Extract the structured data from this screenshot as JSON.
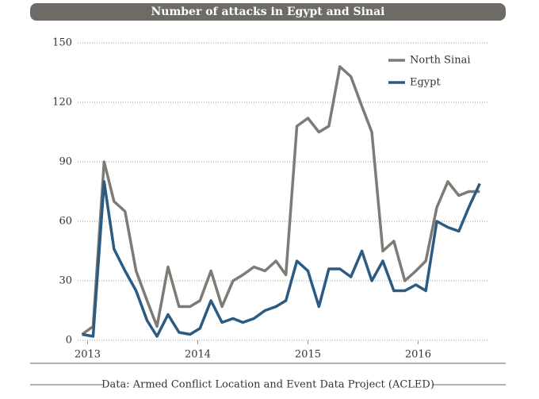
{
  "chart_data": {
    "type": "line",
    "title": "Number of attacks in Egypt and Sinai",
    "source": "Data: Armed Conflict Location and Event Data Project (ACLED)",
    "x": [
      2012.95,
      2013.05,
      2013.15,
      2013.24,
      2013.34,
      2013.44,
      2013.54,
      2013.63,
      2013.73,
      2013.83,
      2013.93,
      2014.02,
      2014.12,
      2014.22,
      2014.32,
      2014.41,
      2014.51,
      2014.61,
      2014.71,
      2014.8,
      2014.9,
      2015.0,
      2015.1,
      2015.19,
      2015.29,
      2015.39,
      2015.49,
      2015.58,
      2015.68,
      2015.78,
      2015.88,
      2015.98,
      2016.07,
      2016.17,
      2016.27,
      2016.37,
      2016.46,
      2016.56
    ],
    "series": [
      {
        "name": "North Sinai",
        "color": "#7d7b74",
        "values": [
          3,
          7,
          90,
          70,
          65,
          35,
          20,
          7,
          37,
          17,
          17,
          20,
          35,
          17,
          30,
          33,
          37,
          35,
          40,
          33,
          108,
          112,
          105,
          108,
          138,
          133,
          118,
          105,
          45,
          50,
          30,
          35,
          40,
          67,
          80,
          73,
          75,
          75
        ]
      },
      {
        "name": "Egypt",
        "color": "#2b5a82",
        "values": [
          3,
          2,
          80,
          46,
          35,
          25,
          10,
          2,
          13,
          4,
          3,
          6,
          20,
          9,
          11,
          9,
          11,
          15,
          17,
          20,
          40,
          35,
          17,
          36,
          36,
          32,
          45,
          30,
          40,
          25,
          25,
          28,
          25,
          60,
          57,
          55,
          67,
          79
        ]
      }
    ],
    "xlim": [
      2012.91,
      2016.63
    ],
    "xticks": [
      2013,
      2014,
      2015,
      2016
    ],
    "ylim": [
      0,
      150
    ],
    "yticks": [
      0,
      30,
      60,
      90,
      120,
      150
    ],
    "grid": true,
    "legend": "upper right"
  }
}
